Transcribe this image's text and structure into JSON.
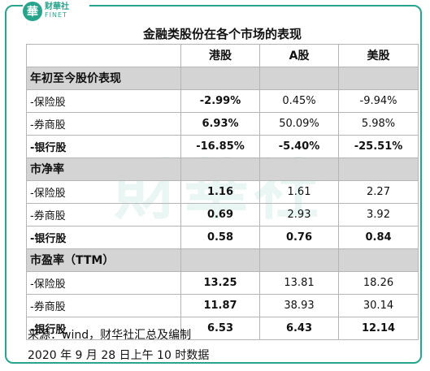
{
  "logo": {
    "cn": "财華社",
    "en": "FINET",
    "mark": "華"
  },
  "watermark": "財華社",
  "title": "金融类股份在各个市场的表现",
  "columns": [
    "港股",
    "A股",
    "美股"
  ],
  "sections": [
    {
      "label": "年初至今股价表现",
      "rows": [
        {
          "label": "-保险股",
          "values": [
            "-2.99%",
            "0.45%",
            "-9.94%"
          ]
        },
        {
          "label": "-券商股",
          "values": [
            "6.93%",
            "50.09%",
            "5.98%"
          ]
        },
        {
          "label": "-银行股",
          "values": [
            "-16.85%",
            "-5.40%",
            "-25.51%"
          ]
        }
      ]
    },
    {
      "label": "市净率",
      "rows": [
        {
          "label": "-保险股",
          "values": [
            "1.16",
            "1.61",
            "2.27"
          ]
        },
        {
          "label": "-券商股",
          "values": [
            "0.69",
            "2.93",
            "3.92"
          ]
        },
        {
          "label": "-银行股",
          "values": [
            "0.58",
            "0.76",
            "0.84"
          ]
        }
      ]
    },
    {
      "label": "市盈率（TTM）",
      "rows": [
        {
          "label": "-保险股",
          "values": [
            "13.25",
            "13.81",
            "18.26"
          ]
        },
        {
          "label": "-券商股",
          "values": [
            "11.87",
            "38.93",
            "30.14"
          ]
        },
        {
          "label": "-银行股",
          "values": [
            "6.53",
            "6.43",
            "12.14"
          ]
        }
      ]
    }
  ],
  "footer": {
    "source": "来源：wind，财华社汇总及编制",
    "date": "2020 年 9 月 28 日上午 10 时数据"
  }
}
